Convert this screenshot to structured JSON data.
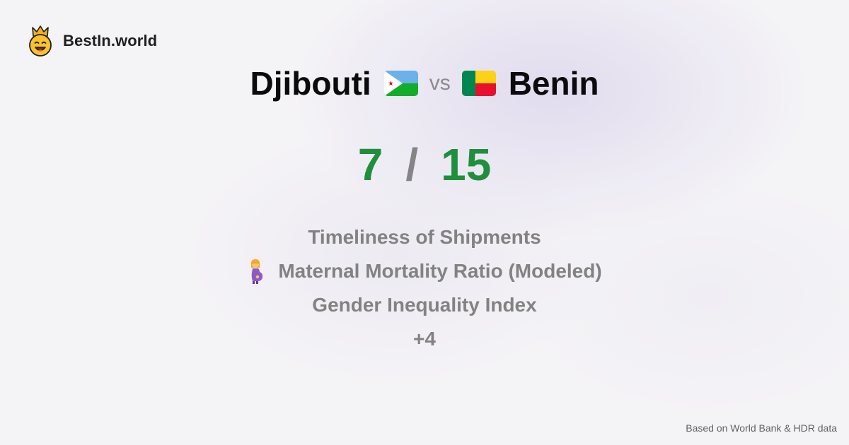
{
  "brand": {
    "name": "BestIn.world",
    "logo_icon": "crowned-smiley-icon"
  },
  "comparison": {
    "country_a": "Djibouti",
    "country_a_flag": "djibouti-flag-icon",
    "vs_label": "vs",
    "country_b": "Benin",
    "country_b_flag": "benin-flag-icon"
  },
  "score": {
    "a": "7",
    "separator": "/",
    "b": "15",
    "color": "#1f8f3c"
  },
  "metrics": [
    {
      "label": "Timeliness of Shipments",
      "icon": ""
    },
    {
      "label": "Maternal Mortality Ratio (Modeled)",
      "icon": "pregnant-woman-icon"
    },
    {
      "label": "Gender Inequality Index",
      "icon": ""
    }
  ],
  "more_label": "+4",
  "footer": {
    "source": "Based on World Bank & HDR data"
  }
}
